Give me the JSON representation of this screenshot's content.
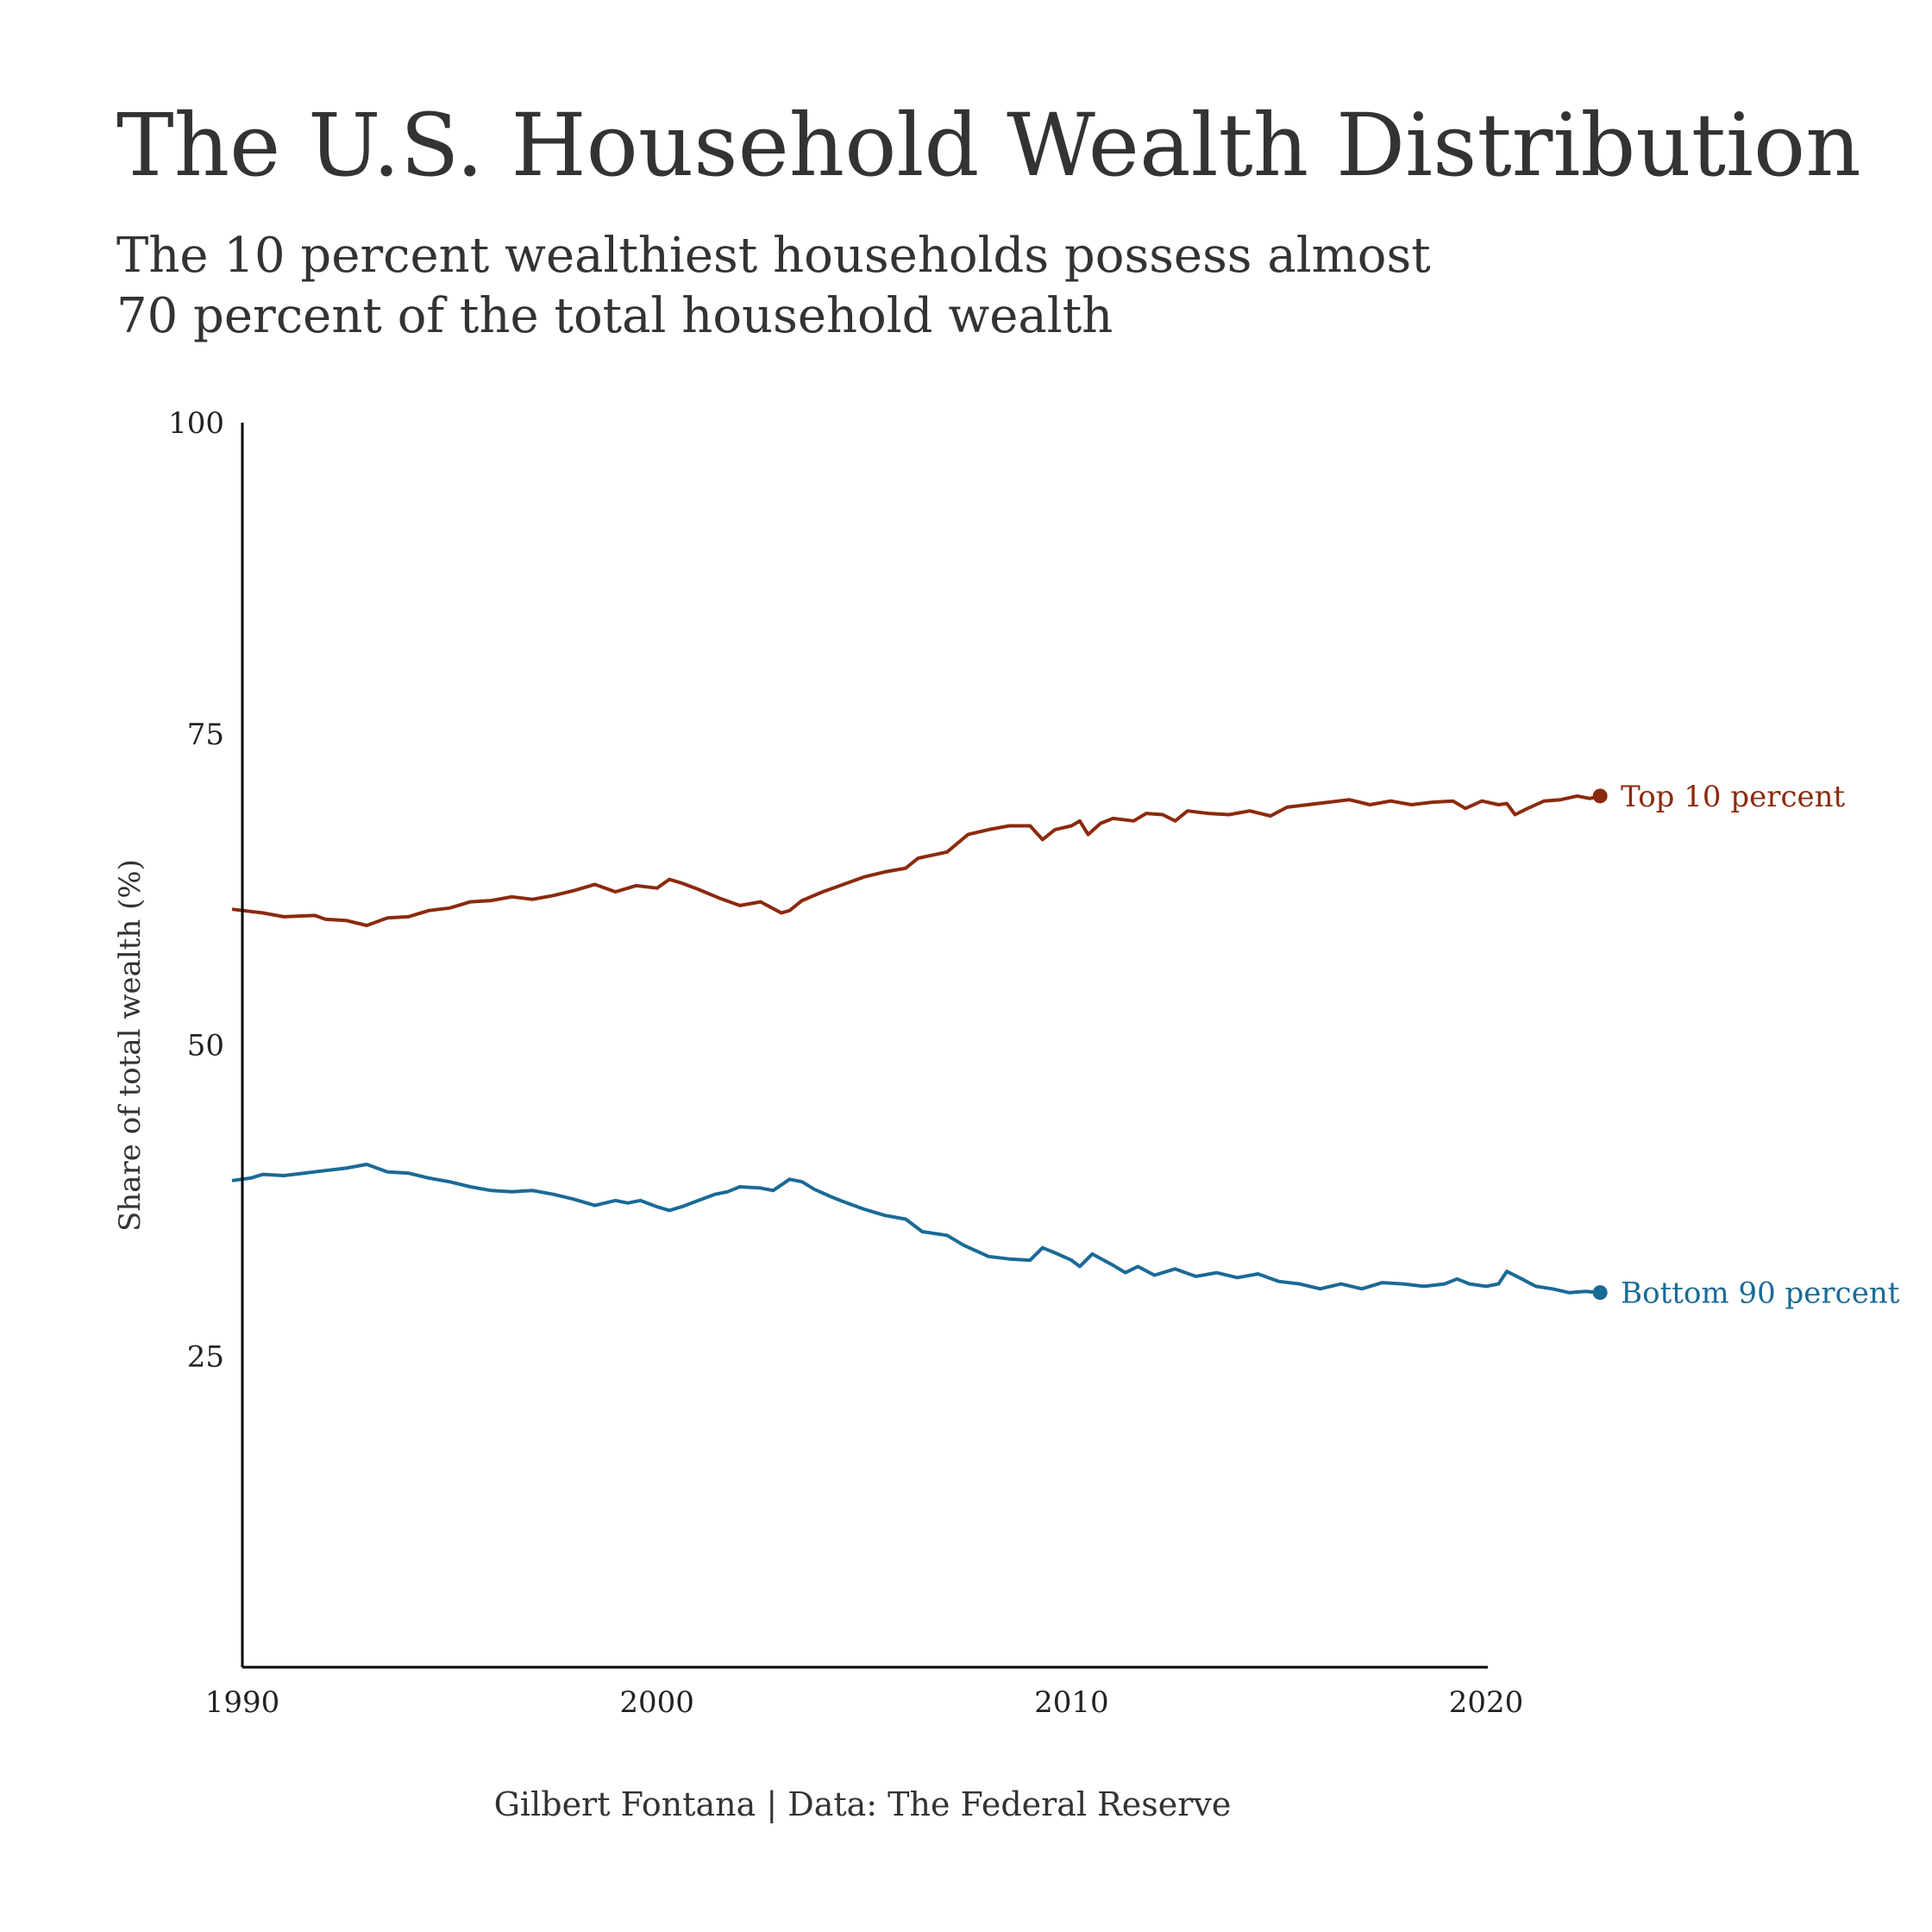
{
  "title": "The U.S. Household Wealth Distribution",
  "subtitle_line1": "The 10 percent wealthiest households possess almost",
  "subtitle_line2": "70 percent of the total household wealth",
  "caption": "Gilbert Fontana | Data: The Federal Reserve",
  "chart_data": {
    "type": "line",
    "ylabel": "Share of total wealth (%)",
    "xlabel": "",
    "xlim": [
      1990,
      2022.7
    ],
    "ylim": [
      0,
      100
    ],
    "x_ticks": [
      1990,
      2000,
      2010,
      2020
    ],
    "y_ticks": [
      25,
      50,
      75,
      100
    ],
    "grid": false,
    "legend": "end-of-line labels",
    "series": [
      {
        "name": "Top 10 percent",
        "color": "#8B2A0E",
        "points": [
          [
            1989.75,
            60.9
          ],
          [
            1990.5,
            60.6
          ],
          [
            1991.0,
            60.3
          ],
          [
            1991.75,
            60.4
          ],
          [
            1992.0,
            60.1
          ],
          [
            1992.5,
            60.0
          ],
          [
            1993.0,
            59.6
          ],
          [
            1993.5,
            60.2
          ],
          [
            1994.0,
            60.3
          ],
          [
            1994.5,
            60.8
          ],
          [
            1995.0,
            61.0
          ],
          [
            1995.5,
            61.5
          ],
          [
            1996.0,
            61.6
          ],
          [
            1996.5,
            61.9
          ],
          [
            1997.0,
            61.7
          ],
          [
            1997.5,
            62.0
          ],
          [
            1998.0,
            62.4
          ],
          [
            1998.5,
            62.9
          ],
          [
            1999.0,
            62.3
          ],
          [
            1999.5,
            62.8
          ],
          [
            2000.0,
            62.6
          ],
          [
            2000.3,
            63.3
          ],
          [
            2000.6,
            63.0
          ],
          [
            2001.0,
            62.5
          ],
          [
            2001.5,
            61.8
          ],
          [
            2002.0,
            61.2
          ],
          [
            2002.5,
            61.5
          ],
          [
            2003.0,
            60.6
          ],
          [
            2003.2,
            60.8
          ],
          [
            2003.5,
            61.6
          ],
          [
            2004.0,
            62.3
          ],
          [
            2004.5,
            62.9
          ],
          [
            2005.0,
            63.5
          ],
          [
            2005.5,
            63.9
          ],
          [
            2006.0,
            64.2
          ],
          [
            2006.3,
            65.0
          ],
          [
            2007.0,
            65.5
          ],
          [
            2007.5,
            66.9
          ],
          [
            2008.0,
            67.3
          ],
          [
            2008.5,
            67.6
          ],
          [
            2009.0,
            67.6
          ],
          [
            2009.3,
            66.5
          ],
          [
            2009.6,
            67.3
          ],
          [
            2010.0,
            67.6
          ],
          [
            2010.2,
            68.0
          ],
          [
            2010.4,
            66.9
          ],
          [
            2010.7,
            67.8
          ],
          [
            2011.0,
            68.2
          ],
          [
            2011.5,
            68.0
          ],
          [
            2011.8,
            68.6
          ],
          [
            2012.2,
            68.5
          ],
          [
            2012.5,
            68.0
          ],
          [
            2012.8,
            68.8
          ],
          [
            2013.3,
            68.6
          ],
          [
            2013.8,
            68.5
          ],
          [
            2014.3,
            68.8
          ],
          [
            2014.8,
            68.4
          ],
          [
            2015.2,
            69.1
          ],
          [
            2015.7,
            69.3
          ],
          [
            2016.2,
            69.5
          ],
          [
            2016.7,
            69.7
          ],
          [
            2017.2,
            69.3
          ],
          [
            2017.7,
            69.6
          ],
          [
            2018.2,
            69.3
          ],
          [
            2018.7,
            69.5
          ],
          [
            2019.2,
            69.6
          ],
          [
            2019.5,
            69.0
          ],
          [
            2019.9,
            69.6
          ],
          [
            2020.3,
            69.3
          ],
          [
            2020.5,
            69.4
          ],
          [
            2020.7,
            68.5
          ],
          [
            2021.0,
            69.0
          ],
          [
            2021.4,
            69.6
          ],
          [
            2021.8,
            69.7
          ],
          [
            2022.2,
            70.0
          ],
          [
            2022.5,
            69.8
          ],
          [
            2022.75,
            70.0
          ]
        ],
        "end_label": "Top 10 percent"
      },
      {
        "name": "Bottom 90 percent",
        "color": "#1A6A96",
        "points": [
          [
            1989.75,
            39.1
          ],
          [
            1990.2,
            39.3
          ],
          [
            1990.5,
            39.6
          ],
          [
            1991.0,
            39.5
          ],
          [
            1991.5,
            39.7
          ],
          [
            1992.0,
            39.9
          ],
          [
            1992.5,
            40.1
          ],
          [
            1993.0,
            40.4
          ],
          [
            1993.5,
            39.8
          ],
          [
            1994.0,
            39.7
          ],
          [
            1994.5,
            39.3
          ],
          [
            1995.0,
            39.0
          ],
          [
            1995.5,
            38.6
          ],
          [
            1996.0,
            38.3
          ],
          [
            1996.5,
            38.2
          ],
          [
            1997.0,
            38.3
          ],
          [
            1997.5,
            38.0
          ],
          [
            1998.0,
            37.6
          ],
          [
            1998.5,
            37.1
          ],
          [
            1999.0,
            37.5
          ],
          [
            1999.3,
            37.3
          ],
          [
            1999.6,
            37.5
          ],
          [
            2000.0,
            37.0
          ],
          [
            2000.3,
            36.7
          ],
          [
            2000.6,
            37.0
          ],
          [
            2001.0,
            37.5
          ],
          [
            2001.4,
            38.0
          ],
          [
            2001.7,
            38.2
          ],
          [
            2002.0,
            38.6
          ],
          [
            2002.5,
            38.5
          ],
          [
            2002.8,
            38.3
          ],
          [
            2003.2,
            39.2
          ],
          [
            2003.5,
            39.0
          ],
          [
            2003.8,
            38.4
          ],
          [
            2004.2,
            37.8
          ],
          [
            2004.5,
            37.4
          ],
          [
            2005.0,
            36.8
          ],
          [
            2005.5,
            36.3
          ],
          [
            2006.0,
            36.0
          ],
          [
            2006.4,
            35.0
          ],
          [
            2007.0,
            34.7
          ],
          [
            2007.4,
            33.9
          ],
          [
            2008.0,
            33.0
          ],
          [
            2008.5,
            32.8
          ],
          [
            2009.0,
            32.7
          ],
          [
            2009.3,
            33.7
          ],
          [
            2009.6,
            33.3
          ],
          [
            2010.0,
            32.7
          ],
          [
            2010.2,
            32.2
          ],
          [
            2010.5,
            33.2
          ],
          [
            2011.0,
            32.3
          ],
          [
            2011.3,
            31.7
          ],
          [
            2011.6,
            32.2
          ],
          [
            2012.0,
            31.5
          ],
          [
            2012.5,
            32.0
          ],
          [
            2013.0,
            31.4
          ],
          [
            2013.5,
            31.7
          ],
          [
            2014.0,
            31.3
          ],
          [
            2014.5,
            31.6
          ],
          [
            2015.0,
            31.0
          ],
          [
            2015.5,
            30.8
          ],
          [
            2016.0,
            30.4
          ],
          [
            2016.5,
            30.8
          ],
          [
            2017.0,
            30.4
          ],
          [
            2017.5,
            30.9
          ],
          [
            2018.0,
            30.8
          ],
          [
            2018.5,
            30.6
          ],
          [
            2019.0,
            30.8
          ],
          [
            2019.3,
            31.2
          ],
          [
            2019.6,
            30.8
          ],
          [
            2020.0,
            30.6
          ],
          [
            2020.3,
            30.8
          ],
          [
            2020.5,
            31.8
          ],
          [
            2020.8,
            31.3
          ],
          [
            2021.2,
            30.6
          ],
          [
            2021.6,
            30.4
          ],
          [
            2022.0,
            30.1
          ],
          [
            2022.4,
            30.2
          ],
          [
            2022.75,
            30.1
          ]
        ],
        "end_label": "Bottom 90 percent"
      }
    ]
  }
}
